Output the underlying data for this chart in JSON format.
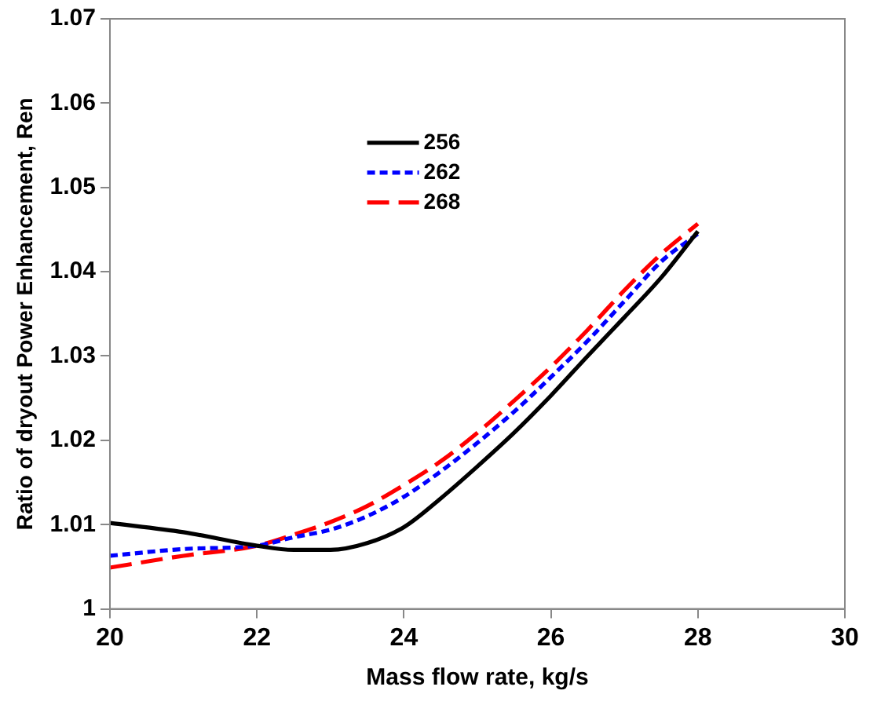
{
  "chart_data": {
    "type": "line",
    "xlabel": "Mass flow rate, kg/s",
    "ylabel": "Ratio of dryout Power Enhancement, Ren",
    "x": [
      20,
      21,
      22,
      22.5,
      23,
      23.5,
      24,
      24.5,
      25,
      25.5,
      26,
      26.5,
      27,
      27.5,
      28
    ],
    "series": [
      {
        "name": "256",
        "color": "#000000",
        "line_style": "solid",
        "values": [
          1.0102,
          1.0091,
          1.0075,
          1.007,
          1.007,
          1.0078,
          1.0097,
          1.0131,
          1.0169,
          1.0209,
          1.0253,
          1.03,
          1.0346,
          1.0393,
          1.0448
        ]
      },
      {
        "name": "262",
        "color": "#0000ff",
        "line_style": "dashed",
        "values": [
          1.0063,
          1.0071,
          1.0075,
          1.0085,
          1.0094,
          1.011,
          1.0133,
          1.0163,
          1.0197,
          1.0234,
          1.0275,
          1.0318,
          1.0365,
          1.0412,
          1.0445
        ]
      },
      {
        "name": "268",
        "color": "#ff0000",
        "line_style": "longdash",
        "values": [
          1.0049,
          1.0063,
          1.0075,
          1.0088,
          1.0103,
          1.0122,
          1.0147,
          1.0175,
          1.0209,
          1.0247,
          1.0287,
          1.0331,
          1.0378,
          1.0421,
          1.0457
        ]
      }
    ],
    "xlim": [
      20,
      30
    ],
    "xticks": [
      20,
      22,
      24,
      26,
      28,
      30
    ],
    "ylim": [
      1,
      1.07
    ],
    "yticks": [
      1,
      1.01,
      1.02,
      1.03,
      1.04,
      1.05,
      1.06,
      1.07
    ],
    "grid": false,
    "legend": "top left",
    "marker": "none"
  }
}
